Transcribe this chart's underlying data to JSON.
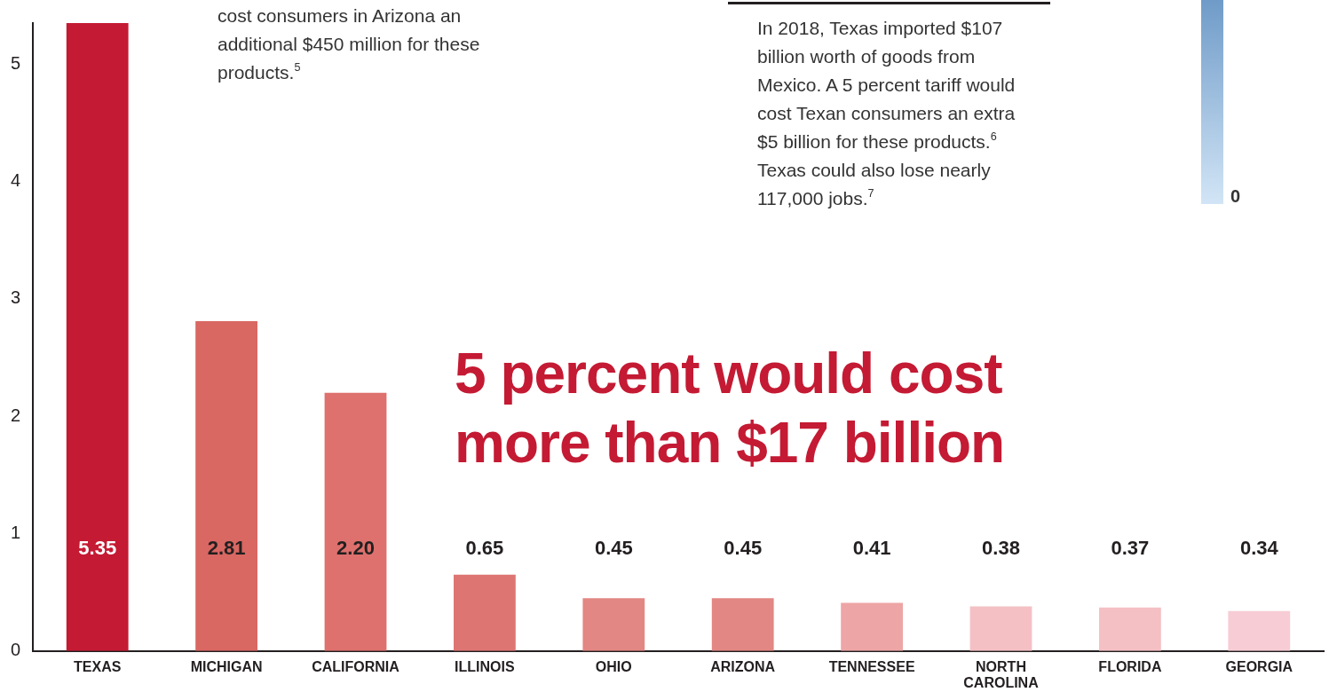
{
  "chart_data": {
    "type": "bar",
    "title": "5 percent would cost more than $17 billion",
    "categories": [
      "TEXAS",
      "MICHIGAN",
      "CALIFORNIA",
      "ILLINOIS",
      "OHIO",
      "ARIZONA",
      "TENNESSEE",
      "NORTH CAROLINA",
      "FLORIDA",
      "GEORGIA"
    ],
    "values": [
      5.35,
      2.81,
      2.2,
      0.65,
      0.45,
      0.45,
      0.41,
      0.38,
      0.37,
      0.34
    ],
    "colors": [
      "#c41a33",
      "#d96762",
      "#de716d",
      "#dd7572",
      "#e28783",
      "#e28783",
      "#eea5a5",
      "#f4c0c4",
      "#f4c0c4",
      "#f7ccd4"
    ],
    "value_labels": [
      "5.35",
      "2.81",
      "2.20",
      "0.65",
      "0.45",
      "0.45",
      "0.41",
      "0.38",
      "0.37",
      "0.34"
    ],
    "ylim": [
      0,
      5.35
    ],
    "yticks": [
      0,
      1,
      2,
      3,
      4,
      5
    ],
    "grid": false,
    "legend": false,
    "annotations": [
      "cost consumers in Arizona an additional $450 million for these products.$^{5}$",
      "In 2018, Texas imported $107 billion worth of goods from Mexico. A 5 percent tariff would cost Texan consumers an extra $5 billion for these products.$^{6}$ Texas could also lose nearly 117,000 jobs.$^{7}$",
      "0"
    ]
  }
}
